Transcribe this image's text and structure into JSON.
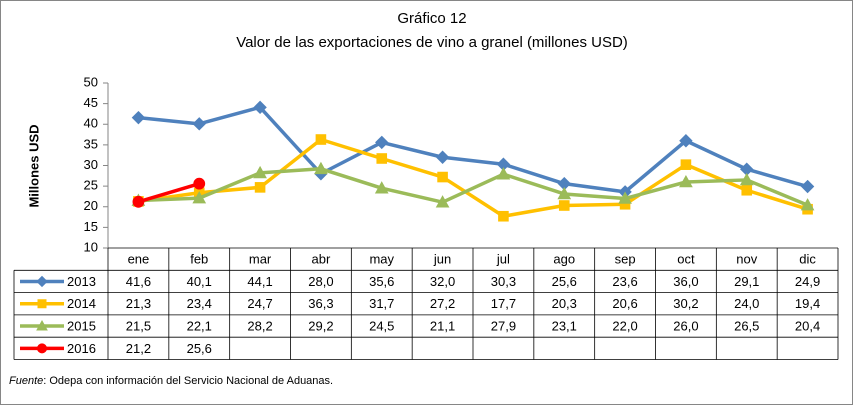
{
  "chart_data": {
    "type": "line",
    "title": "Gráfico 12",
    "subtitle": "Valor de las exportaciones de vino a granel (millones USD)",
    "y_label": "Millones USD",
    "categories": [
      "ene",
      "feb",
      "mar",
      "abr",
      "may",
      "jun",
      "jul",
      "ago",
      "sep",
      "oct",
      "nov",
      "dic"
    ],
    "series": [
      {
        "name": "2013",
        "color": "#4f81bd",
        "marker": "diamond",
        "values": [
          41.6,
          40.1,
          44.1,
          28.0,
          35.6,
          32.0,
          30.3,
          25.6,
          23.6,
          36.0,
          29.1,
          24.9
        ],
        "value_labels": [
          "41,6",
          "40,1",
          "44,1",
          "28,0",
          "35,6",
          "32,0",
          "30,3",
          "25,6",
          "23,6",
          "36,0",
          "29,1",
          "24,9"
        ]
      },
      {
        "name": "2014",
        "color": "#ffc000",
        "marker": "square",
        "values": [
          21.3,
          23.4,
          24.7,
          36.3,
          31.7,
          27.2,
          17.7,
          20.3,
          20.6,
          30.2,
          24.0,
          19.4
        ],
        "value_labels": [
          "21,3",
          "23,4",
          "24,7",
          "36,3",
          "31,7",
          "27,2",
          "17,7",
          "20,3",
          "20,6",
          "30,2",
          "24,0",
          "19,4"
        ]
      },
      {
        "name": "2015",
        "color": "#9bbb59",
        "marker": "triangle",
        "values": [
          21.5,
          22.1,
          28.2,
          29.2,
          24.5,
          21.1,
          27.9,
          23.1,
          22.0,
          26.0,
          26.5,
          20.4
        ],
        "value_labels": [
          "21,5",
          "22,1",
          "28,2",
          "29,2",
          "24,5",
          "21,1",
          "27,9",
          "23,1",
          "22,0",
          "26,0",
          "26,5",
          "20,4"
        ]
      },
      {
        "name": "2016",
        "color": "#ff0000",
        "marker": "circle",
        "values": [
          21.2,
          25.6,
          null,
          null,
          null,
          null,
          null,
          null,
          null,
          null,
          null,
          null
        ],
        "value_labels": [
          "21,2",
          "25,6",
          null,
          null,
          null,
          null,
          null,
          null,
          null,
          null,
          null,
          null
        ]
      }
    ],
    "ylim": [
      10,
      50
    ],
    "yticks": [
      10,
      15,
      20,
      25,
      30,
      35,
      40,
      45,
      50
    ],
    "grid": false,
    "source_label": "Fuente",
    "source": ": Odepa con información del Servicio Nacional de Aduanas."
  }
}
